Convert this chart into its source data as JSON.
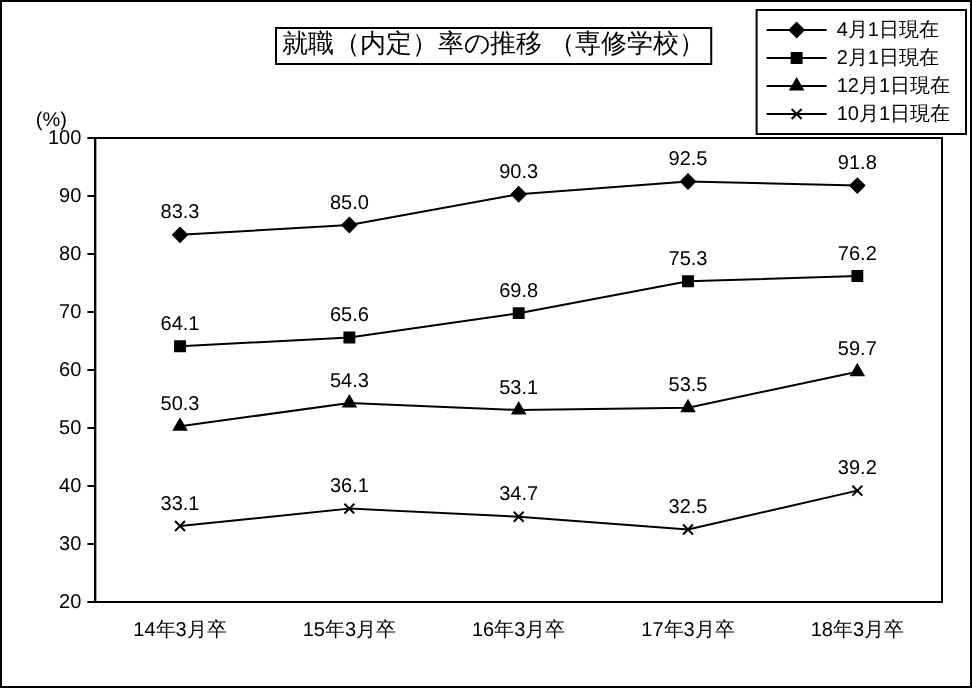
{
  "chart_data": {
    "type": "line",
    "title": "就職（内定）率の推移 （専修学校）",
    "ylabel": "(%)",
    "categories": [
      "14年3月卒",
      "15年3月卒",
      "16年3月卒",
      "17年3月卒",
      "18年3月卒"
    ],
    "series": [
      {
        "name": "4月1日現在",
        "color": "#000000",
        "marker": "diamond",
        "values": [
          83.3,
          85.0,
          90.3,
          92.5,
          91.8
        ],
        "value_labels": [
          "83.3",
          "85.0",
          "90.3",
          "92.5",
          "91.8"
        ]
      },
      {
        "name": "2月1日現在",
        "color": "#000000",
        "marker": "square",
        "values": [
          64.1,
          65.6,
          69.8,
          75.3,
          76.2
        ]
      },
      {
        "name": "12月1日現在",
        "color": "#000000",
        "marker": "triangle",
        "values": [
          50.3,
          54.3,
          53.1,
          53.5,
          59.7
        ]
      },
      {
        "name": "10月1日現在",
        "color": "#000000",
        "marker": "cross",
        "values": [
          33.1,
          36.1,
          34.7,
          32.5,
          39.2
        ]
      }
    ],
    "ylim": [
      20,
      100
    ],
    "yticks": [
      20,
      30,
      40,
      50,
      60,
      70,
      80,
      90,
      100
    ],
    "grid": false,
    "legend": "top right",
    "data_labels": true,
    "line_style": "solid"
  }
}
